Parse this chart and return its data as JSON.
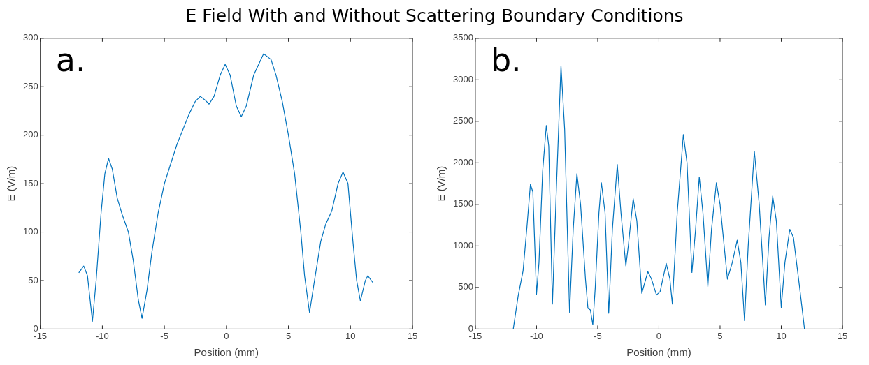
{
  "chart_data": [
    {
      "type": "line",
      "title": "E Field With and Without Scattering Boundary Conditions",
      "xlabel": "Position (mm)",
      "ylabel": "E (V/m)",
      "annotations": [
        "a."
      ],
      "xlim": [
        -15,
        15
      ],
      "xticks": [
        -15,
        -10,
        -5,
        0,
        5,
        10,
        15
      ],
      "ylim": [
        0,
        300
      ],
      "yticks": [
        0,
        50,
        100,
        150,
        200,
        250,
        300
      ],
      "grid": false,
      "legend": false,
      "series": [
        {
          "color": "#0072bd",
          "x": [
            -11.9,
            -11.5,
            -11.2,
            -10.8,
            -10.5,
            -10.1,
            -9.8,
            -9.5,
            -9.2,
            -8.8,
            -8.4,
            -7.9,
            -7.5,
            -7.1,
            -6.8,
            -6.4,
            -6,
            -5.5,
            -5,
            -4,
            -3,
            -2.5,
            -2.1,
            -1.7,
            -1.4,
            -1,
            -0.5,
            -0.1,
            0.3,
            0.8,
            1.2,
            1.6,
            2.2,
            3,
            3.6,
            4,
            4.5,
            5,
            5.5,
            6,
            6.3,
            6.7,
            7.1,
            7.6,
            8,
            8.5,
            9,
            9.4,
            9.8,
            10.2,
            10.5,
            10.8,
            11.2,
            11.4,
            11.8
          ],
          "values": [
            58,
            65,
            55,
            8,
            50,
            120,
            160,
            176,
            165,
            135,
            118,
            100,
            70,
            30,
            11,
            40,
            80,
            120,
            150,
            190,
            222,
            235,
            240,
            236,
            232,
            240,
            262,
            273,
            262,
            230,
            219,
            230,
            262,
            284,
            278,
            262,
            235,
            200,
            160,
            100,
            55,
            17,
            50,
            90,
            108,
            122,
            150,
            162,
            150,
            90,
            50,
            29,
            50,
            55,
            48
          ]
        }
      ]
    },
    {
      "type": "line",
      "xlabel": "Position (mm)",
      "ylabel": "E (V/m)",
      "annotations": [
        "b."
      ],
      "xlim": [
        -15,
        15
      ],
      "xticks": [
        -15,
        -10,
        -5,
        0,
        5,
        10,
        15
      ],
      "ylim": [
        0,
        3500
      ],
      "yticks": [
        0,
        500,
        1000,
        1500,
        2000,
        2500,
        3000,
        3500
      ],
      "grid": false,
      "legend": false,
      "series": [
        {
          "color": "#0072bd",
          "x": [
            -11.9,
            -11.5,
            -11.1,
            -10.8,
            -10.5,
            -10.3,
            -10,
            -9.8,
            -9.5,
            -9.2,
            -9,
            -8.7,
            -8.4,
            -8,
            -7.7,
            -7.3,
            -7,
            -6.7,
            -6.4,
            -6,
            -5.8,
            -5.6,
            -5.4,
            -5.2,
            -4.9,
            -4.7,
            -4.4,
            -4.1,
            -3.8,
            -3.4,
            -3.1,
            -2.7,
            -2.5,
            -2.1,
            -1.8,
            -1.4,
            -0.9,
            -0.6,
            -0.2,
            0.1,
            0.6,
            0.9,
            1.1,
            1.5,
            2,
            2.3,
            2.7,
            3,
            3.3,
            3.6,
            4,
            4.3,
            4.7,
            5,
            5.6,
            6,
            6.4,
            6.7,
            7,
            7.3,
            7.8,
            8.2,
            8.7,
            9,
            9.3,
            9.6,
            10,
            10.3,
            10.7,
            11,
            11.5,
            11.9
          ],
          "values": [
            0,
            400,
            700,
            1200,
            1740,
            1650,
            420,
            800,
            1900,
            2450,
            2200,
            300,
            1600,
            3170,
            2400,
            200,
            1200,
            1870,
            1500,
            600,
            250,
            230,
            50,
            500,
            1400,
            1760,
            1400,
            190,
            1200,
            1980,
            1400,
            760,
            1000,
            1570,
            1300,
            430,
            690,
            600,
            410,
            450,
            790,
            600,
            300,
            1400,
            2340,
            2000,
            680,
            1200,
            1830,
            1400,
            510,
            1200,
            1760,
            1500,
            600,
            800,
            1070,
            800,
            100,
            1000,
            2140,
            1500,
            290,
            1100,
            1600,
            1300,
            260,
            800,
            1200,
            1100,
            500,
            0
          ]
        }
      ]
    }
  ]
}
